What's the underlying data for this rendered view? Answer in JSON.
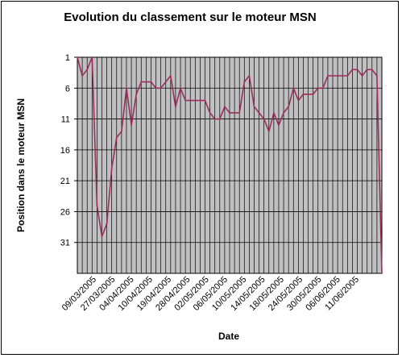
{
  "colors": {
    "plot_background": "#c0c0c0",
    "gridline": "#000000",
    "series_line": "#9c2c5e",
    "frame": "#000000"
  },
  "chart_data": {
    "type": "line",
    "title": "Evolution du classement sur le moteur MSN",
    "xlabel": "Date",
    "ylabel": "Position dans le moteur MSN",
    "y_reversed": true,
    "ylim": [
      1,
      36
    ],
    "yticks": [
      "1",
      "6",
      "11",
      "16",
      "21",
      "26",
      "31"
    ],
    "xticks": [
      "09/03/2005",
      "27/03/2005",
      "04/04/2005",
      "10/04/2005",
      "19/04/2005",
      "28/04/2005",
      "02/05/2005",
      "06/05/2005",
      "10/05/2005",
      "14/05/2005",
      "18/05/2005",
      "24/05/2005",
      "30/05/2005",
      "06/06/2005",
      "11/06/2005"
    ],
    "grid": "vertical and horizontal",
    "legend": "none",
    "series": [
      {
        "values": [
          1,
          4,
          3,
          1,
          25,
          30,
          28,
          19,
          14,
          13,
          6,
          12,
          7,
          5,
          5,
          5,
          6,
          6,
          5,
          4,
          9,
          6,
          8,
          8,
          8,
          8,
          8,
          10,
          11,
          11,
          9,
          10,
          10,
          10,
          5,
          4,
          9,
          10,
          11,
          13,
          10,
          12,
          10,
          9,
          6,
          8,
          7,
          7,
          7,
          6,
          6,
          4,
          4,
          4,
          4,
          4,
          3,
          3,
          4,
          3,
          3,
          4,
          36
        ]
      }
    ]
  }
}
